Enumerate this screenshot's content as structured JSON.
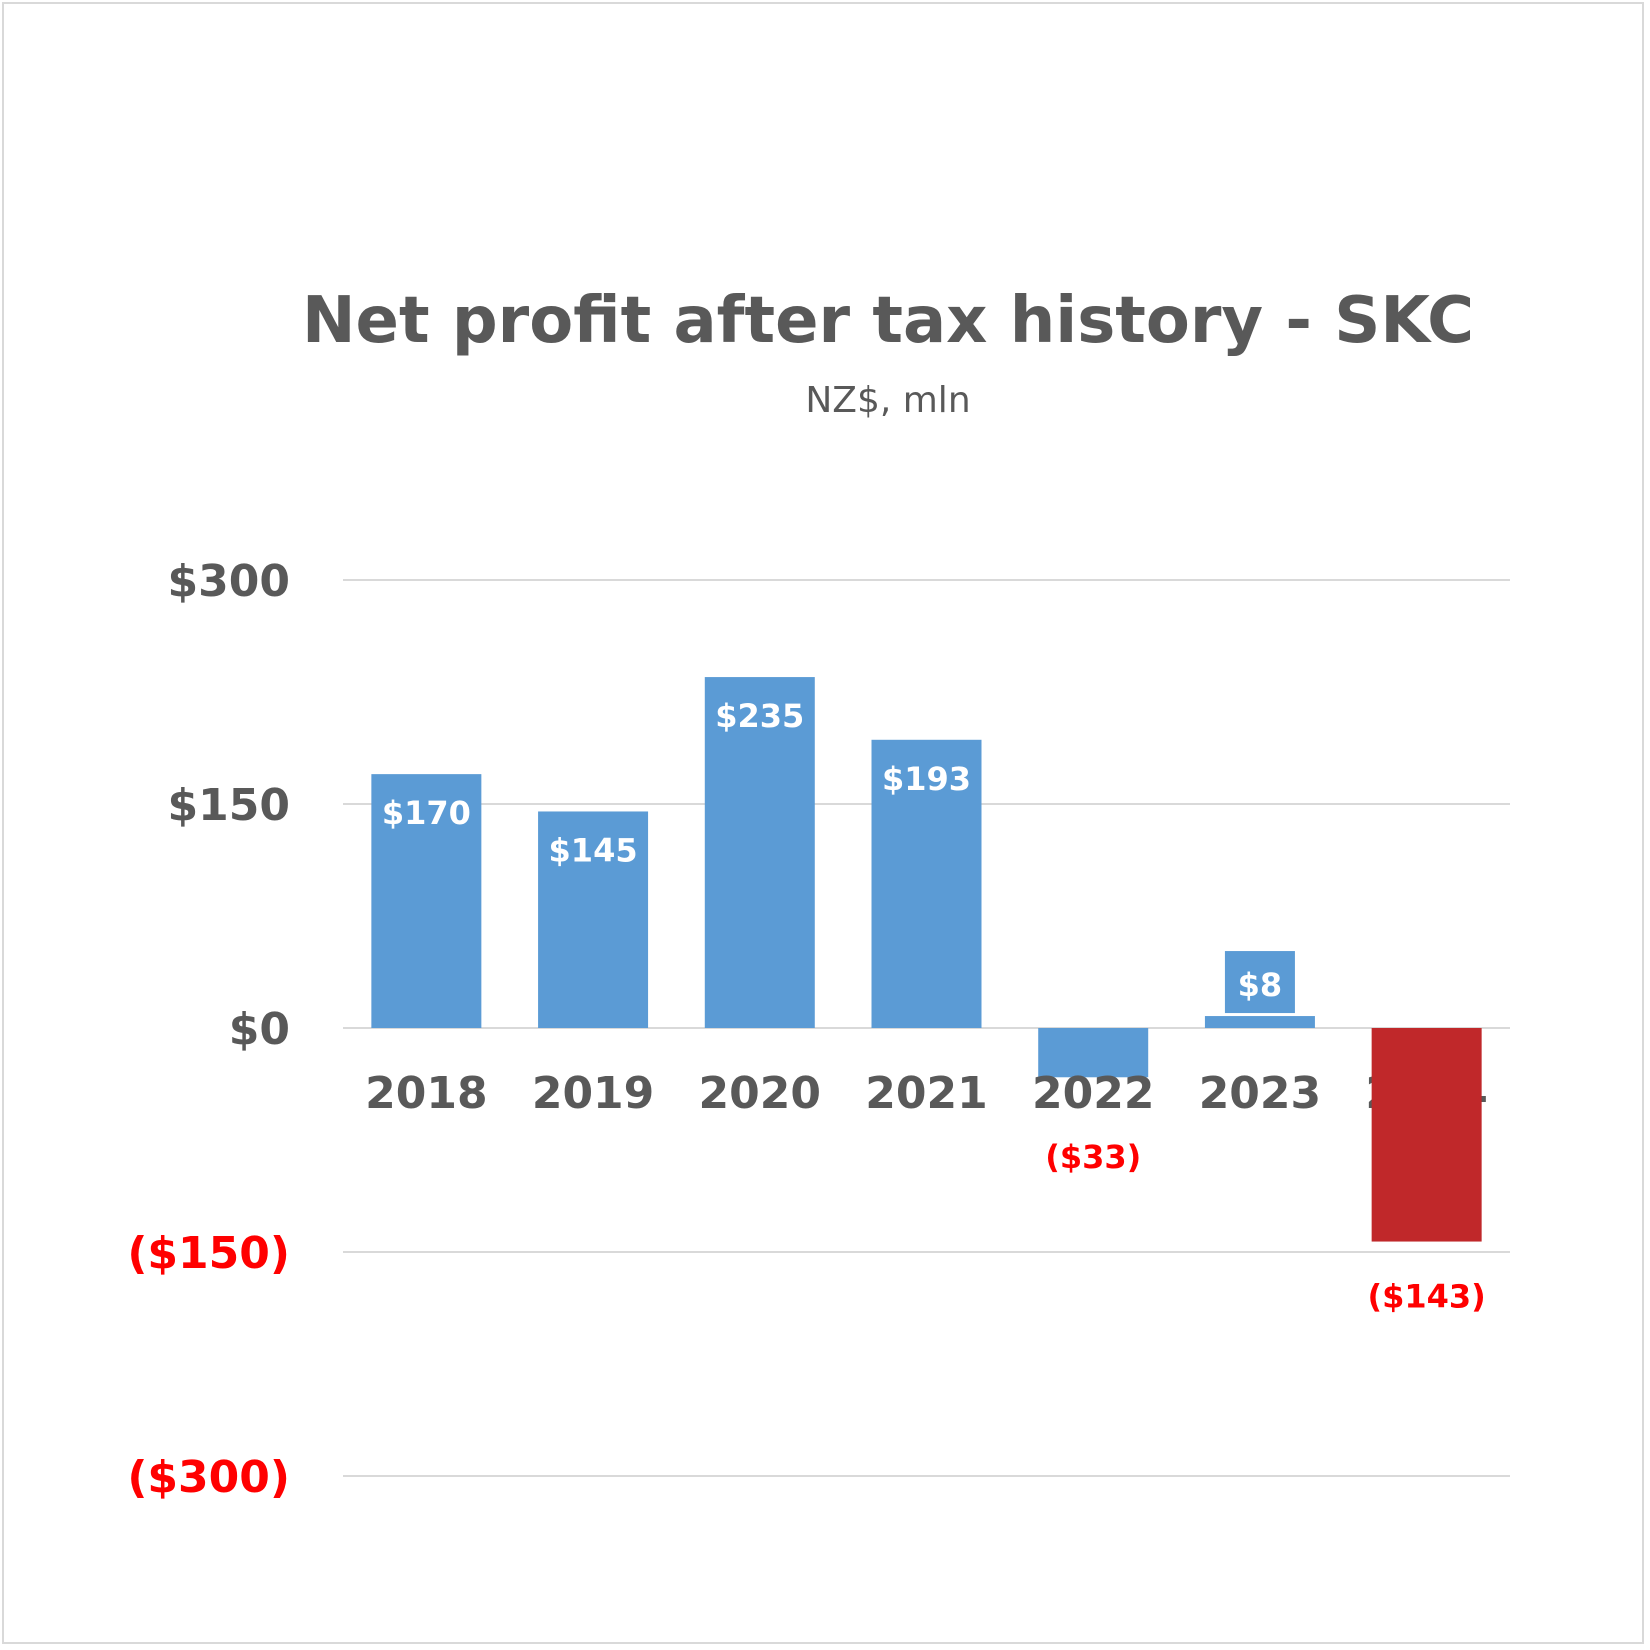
{
  "chart_data": {
    "type": "bar",
    "title": "Net profit after tax history - SKC",
    "subtitle": "NZ$, mln",
    "categories": [
      "2018",
      "2019",
      "2020",
      "2021",
      "2022",
      "2023",
      "2024"
    ],
    "values": [
      170,
      145,
      235,
      193,
      -33,
      8,
      -143
    ],
    "value_labels": [
      "$170",
      "$145",
      "$235",
      "$193",
      "($33)",
      "$8",
      "($143)"
    ],
    "y_ticks": [
      300,
      150,
      0,
      -150,
      -300
    ],
    "y_tick_labels": [
      "$300",
      "$150",
      "$0",
      "($150)",
      "($300)"
    ],
    "ylim": [
      -300,
      300
    ],
    "grid": true,
    "legend": "none",
    "colors": {
      "bar": "#5b9bd5",
      "highlight_bar": "#c0282a",
      "negative_text": "#ff0000",
      "axis_text": "#595959",
      "bar_label_text": "#ffffff"
    }
  }
}
